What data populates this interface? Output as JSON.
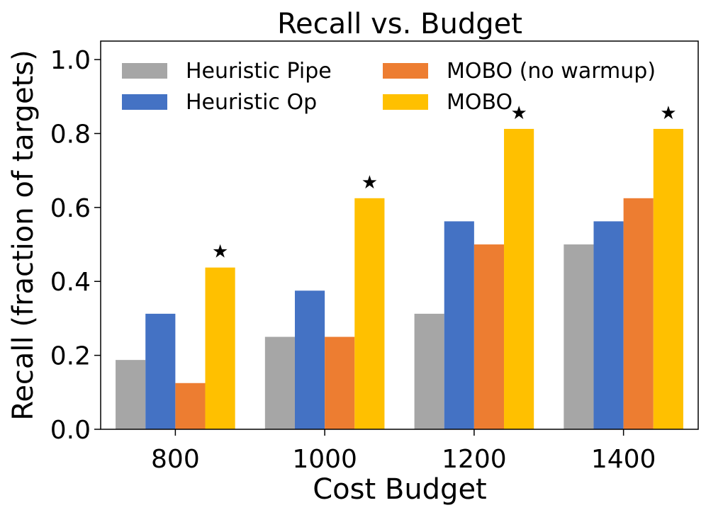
{
  "chart_data": {
    "type": "bar",
    "title": "Recall vs. Budget",
    "xlabel": "Cost Budget",
    "ylabel": "Recall (fraction of targets)",
    "categories": [
      "800",
      "1000",
      "1200",
      "1400"
    ],
    "ylim": [
      0,
      1.05
    ],
    "yticks": [
      0.0,
      0.2,
      0.4,
      0.6,
      0.8,
      1.0
    ],
    "ytick_labels": [
      "0.0",
      "0.2",
      "0.4",
      "0.6",
      "0.8",
      "1.0"
    ],
    "grid": false,
    "legend_location": "upper-left",
    "series": [
      {
        "name": "Heuristic Pipe",
        "color": "#a6a6a6",
        "values": [
          0.1875,
          0.25,
          0.3125,
          0.5
        ]
      },
      {
        "name": "Heuristic Op",
        "color": "#4472c4",
        "values": [
          0.3125,
          0.375,
          0.5625,
          0.5625
        ]
      },
      {
        "name": "MOBO (no warmup)",
        "color": "#ed7d31",
        "values": [
          0.125,
          0.25,
          0.5,
          0.625
        ]
      },
      {
        "name": "MOBO",
        "color": "#ffc000",
        "values": [
          0.4375,
          0.625,
          0.8125,
          0.8125
        ]
      }
    ],
    "annotations": {
      "marker": "★",
      "series": "MOBO",
      "categories": [
        "800",
        "1000",
        "1200",
        "1400"
      ]
    }
  }
}
